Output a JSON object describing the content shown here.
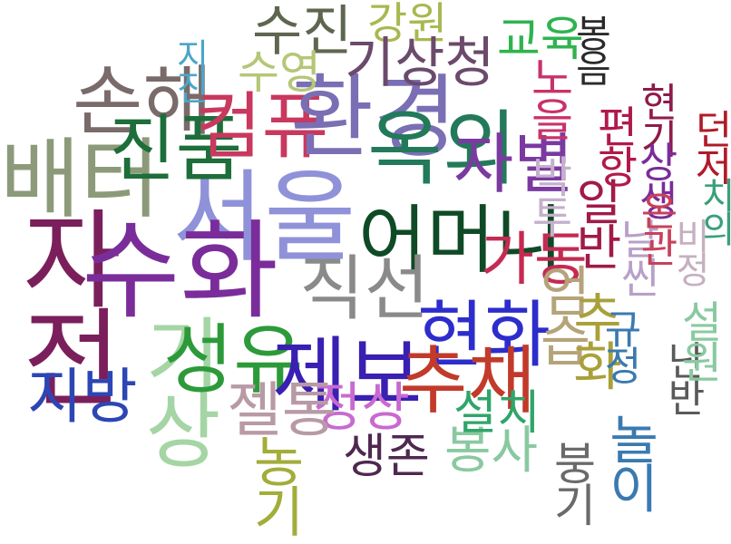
{
  "words": [
    {
      "id": "seoul",
      "text": "서울",
      "color": "#8f92d9"
    },
    {
      "id": "jajeon",
      "text": "자전",
      "color": "#7b1f5c"
    },
    {
      "id": "baeteo",
      "text": "배터",
      "color": "#8c9a7a"
    },
    {
      "id": "suhwa",
      "text": "수화",
      "color": "#7a2d9a"
    },
    {
      "id": "sonhae",
      "text": "손해",
      "color": "#7a6a6a"
    },
    {
      "id": "jinpum",
      "text": "진품",
      "color": "#1d6e3a"
    },
    {
      "id": "keompyu",
      "text": "컴퓨",
      "color": "#c9385e"
    },
    {
      "id": "hwangyeong",
      "text": "환경",
      "color": "#7a6fb4"
    },
    {
      "id": "sujin",
      "text": "수진",
      "color": "#5f6650"
    },
    {
      "id": "gangwon",
      "text": "강원",
      "color": "#a7b94f"
    },
    {
      "id": "gisang",
      "text": "기상청",
      "color": "#6b4a6b"
    },
    {
      "id": "suyeong",
      "text": "수영",
      "color": "#b4c776"
    },
    {
      "id": "gyoyuk",
      "text": "교육",
      "color": "#2fb34f"
    },
    {
      "id": "jijin",
      "text": "지진",
      "color": "#4aa6c9"
    },
    {
      "id": "okwi",
      "text": "옥외",
      "color": "#237a5a"
    },
    {
      "id": "eomeoni",
      "text": "어머니",
      "color": "#0f4a26"
    },
    {
      "id": "jabyeol",
      "text": "자별",
      "color": "#7a3aa0"
    },
    {
      "id": "gisang2",
      "text": "기상",
      "color": "#a5d5a5"
    },
    {
      "id": "jibang",
      "text": "지방",
      "color": "#2d46b5"
    },
    {
      "id": "seongyu",
      "text": "성유",
      "color": "#2d9a3a"
    },
    {
      "id": "hyeonhwa",
      "text": "현화",
      "color": "#2d2dcc"
    },
    {
      "id": "jebo",
      "text": "제보",
      "color": "#3a1fb3"
    },
    {
      "id": "gadong",
      "text": "가동",
      "color": "#c52a52"
    },
    {
      "id": "jikseon",
      "text": "직선",
      "color": "#8a8a8a"
    },
    {
      "id": "chuchae",
      "text": "추채",
      "color": "#c23a2a"
    },
    {
      "id": "jeonsang",
      "text": "정상",
      "color": "#c86ad0"
    },
    {
      "id": "jeltong",
      "text": "젤통",
      "color": "#b89aa6"
    },
    {
      "id": "saengjon",
      "text": "생존",
      "color": "#4f2850"
    },
    {
      "id": "bongsa",
      "text": "봉사",
      "color": "#8ac9a0"
    },
    {
      "id": "seolchi",
      "text": "설치",
      "color": "#2fa56a"
    },
    {
      "id": "baktu",
      "text": "박투",
      "color": "#c4b0cc"
    },
    {
      "id": "ilbu",
      "text": "일반",
      "color": "#a01a4a"
    },
    {
      "id": "noeul",
      "text": "노을",
      "color": "#c8326a"
    },
    {
      "id": "eomseup",
      "text": "엄습",
      "color": "#b5a37a"
    },
    {
      "id": "nanban",
      "text": "난반",
      "color": "#5a5a5a"
    },
    {
      "id": "seolwon",
      "text": "설원",
      "color": "#8ac9a0"
    },
    {
      "id": "bunggi",
      "text": "붕기",
      "color": "#6a6a6a"
    },
    {
      "id": "nori",
      "text": "놀이",
      "color": "#3a7ab0"
    },
    {
      "id": "nonggi",
      "text": "농기",
      "color": "#a2ad3a"
    },
    {
      "id": "chuhwa",
      "text": "추화",
      "color": "#aaa03a"
    },
    {
      "id": "bongeum",
      "text": "봉음",
      "color": "#2a2a2a"
    },
    {
      "id": "hyeongi",
      "text": "현기",
      "color": "#8f1a4a"
    },
    {
      "id": "pyeonhang",
      "text": "편항",
      "color": "#b01a4a"
    },
    {
      "id": "sangsaeng",
      "text": "상생",
      "color": "#7a2d9a"
    },
    {
      "id": "deonjeo",
      "text": "던저",
      "color": "#b01a2a"
    },
    {
      "id": "nalsseon",
      "text": "날씬",
      "color": "#b8a0c8"
    },
    {
      "id": "ongwan",
      "text": "온관",
      "color": "#c8405a"
    },
    {
      "id": "chiui",
      "text": "치의",
      "color": "#3aa07a"
    },
    {
      "id": "gyujeong",
      "text": "규정",
      "color": "#8a7a1a"
    },
    {
      "id": "bijeong",
      "text": "비정",
      "color": "#c5b0c0"
    }
  ]
}
